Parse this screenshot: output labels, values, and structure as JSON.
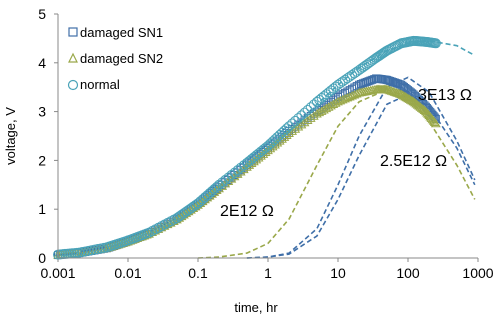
{
  "chart_data": {
    "type": "scatter",
    "xlabel": "time, hr",
    "ylabel": "voltage, V",
    "xscale": "log",
    "xlim": [
      0.001,
      1000
    ],
    "ylim": [
      0,
      5
    ],
    "x_ticks": [
      "0.001",
      "0.01",
      "0.1",
      "1",
      "10",
      "100",
      "1000"
    ],
    "y_ticks": [
      "0",
      "1",
      "2",
      "3",
      "4",
      "5"
    ],
    "legend_position": "top-left",
    "legend": [
      "damaged SN1",
      "damaged SN2",
      "normal"
    ],
    "series": [
      {
        "name": "damaged SN1",
        "marker": "square",
        "color": "#3f6fa8",
        "x": [
          0.001,
          0.002,
          0.005,
          0.01,
          0.02,
          0.05,
          0.1,
          0.2,
          0.5,
          1,
          2,
          5,
          10,
          20,
          35,
          50,
          80,
          120,
          180,
          250
        ],
        "y": [
          0.06,
          0.1,
          0.2,
          0.34,
          0.5,
          0.8,
          1.1,
          1.45,
          1.9,
          2.25,
          2.6,
          3.0,
          3.3,
          3.55,
          3.68,
          3.65,
          3.55,
          3.35,
          3.1,
          2.85
        ]
      },
      {
        "name": "damaged SN2",
        "marker": "triangle",
        "color": "#9aa84a",
        "x": [
          0.001,
          0.002,
          0.005,
          0.01,
          0.02,
          0.05,
          0.1,
          0.2,
          0.5,
          1,
          2,
          5,
          10,
          20,
          35,
          50,
          80,
          120,
          180,
          250
        ],
        "y": [
          0.06,
          0.1,
          0.2,
          0.33,
          0.49,
          0.78,
          1.08,
          1.42,
          1.86,
          2.2,
          2.55,
          2.95,
          3.2,
          3.38,
          3.45,
          3.45,
          3.35,
          3.2,
          3.0,
          2.75
        ]
      },
      {
        "name": "normal",
        "marker": "circle",
        "color": "#4aa3b8",
        "x": [
          0.001,
          0.002,
          0.005,
          0.01,
          0.02,
          0.05,
          0.1,
          0.2,
          0.5,
          1,
          2,
          5,
          10,
          20,
          35,
          50,
          80,
          120,
          180,
          250
        ],
        "y": [
          0.07,
          0.11,
          0.22,
          0.36,
          0.52,
          0.82,
          1.12,
          1.5,
          1.95,
          2.3,
          2.7,
          3.2,
          3.55,
          3.85,
          4.1,
          4.25,
          4.4,
          4.45,
          4.43,
          4.4
        ]
      }
    ],
    "model_curves": [
      {
        "color": "#4aa3b8",
        "x": [
          0.001,
          0.01,
          0.1,
          1,
          2,
          5,
          10,
          20,
          50,
          100,
          200,
          500,
          900
        ],
        "y": [
          0.05,
          0.3,
          1.05,
          2.2,
          2.6,
          3.15,
          3.55,
          3.9,
          4.25,
          4.4,
          4.45,
          4.35,
          4.15
        ]
      },
      {
        "color": "#3f6fa8",
        "x": [
          0.5,
          1,
          2,
          5,
          10,
          20,
          50,
          100,
          200,
          500,
          900
        ],
        "y": [
          0,
          0.02,
          0.1,
          0.6,
          1.5,
          2.5,
          3.5,
          3.7,
          3.4,
          2.4,
          1.6
        ]
      },
      {
        "color": "#9aa84a",
        "x": [
          0.1,
          0.2,
          0.5,
          1,
          2,
          5,
          10,
          20,
          50,
          100,
          200,
          500,
          900
        ],
        "y": [
          0,
          0.02,
          0.1,
          0.3,
          0.8,
          1.9,
          2.7,
          3.2,
          3.45,
          3.3,
          2.8,
          1.9,
          1.2
        ]
      },
      {
        "color": "#3f6fa8",
        "x": [
          0.5,
          1,
          2,
          5,
          10,
          20,
          50,
          100,
          200,
          500,
          900
        ],
        "y": [
          0,
          0.02,
          0.08,
          0.45,
          1.2,
          2.1,
          3.15,
          3.35,
          3.1,
          2.25,
          1.5
        ]
      }
    ],
    "annotations": [
      "3E13 Ω",
      "2.5E12 Ω",
      "2E12 Ω"
    ]
  }
}
